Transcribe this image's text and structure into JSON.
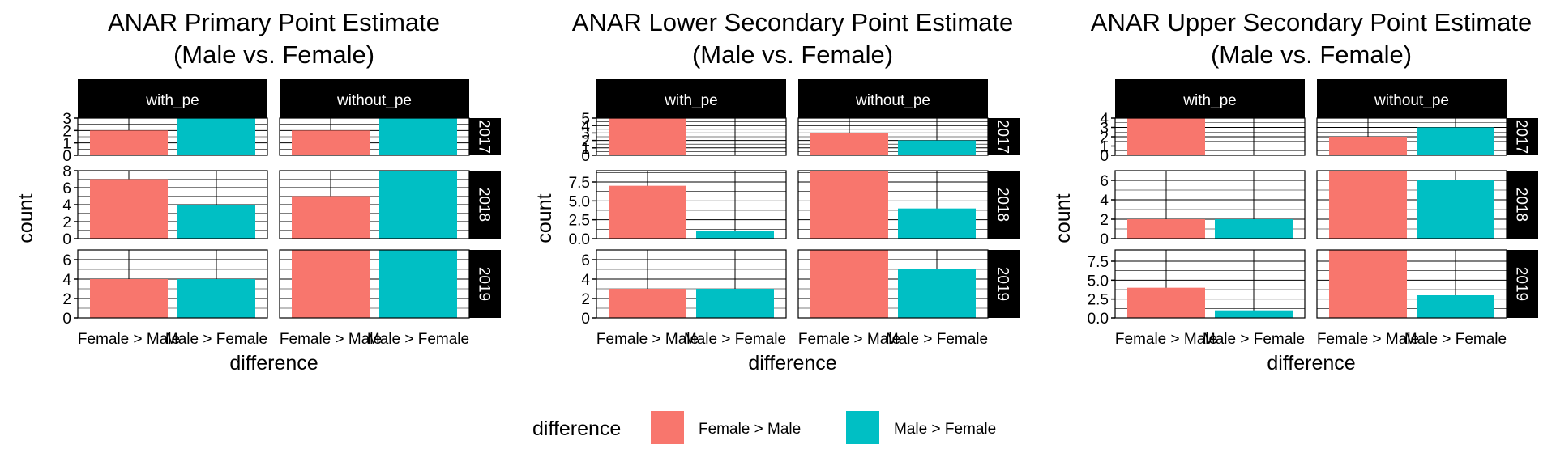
{
  "legend": {
    "title": "difference",
    "items": [
      {
        "label": "Female >  Male",
        "color": "#F8766D"
      },
      {
        "label": "Male > Female",
        "color": "#00BFC4"
      }
    ]
  },
  "chart_data": [
    {
      "type": "bar",
      "title": "ANAR Primary Point Estimate\n(Male vs. Female)",
      "xlabel": "difference",
      "ylabel": "count",
      "categories": [
        "Female >  Male",
        "Male > Female"
      ],
      "facet_cols": [
        "with_pe",
        "without_pe"
      ],
      "facet_rows": [
        "2017",
        "2018",
        "2019"
      ],
      "rows": [
        {
          "year": "2017",
          "ylim": [
            0,
            3
          ],
          "ticks": [
            "0",
            "1",
            "2",
            "3"
          ],
          "tickvals": [
            0,
            1,
            2,
            3
          ],
          "values": {
            "with_pe": [
              2,
              3
            ],
            "without_pe": [
              2,
              3
            ]
          }
        },
        {
          "year": "2018",
          "ylim": [
            0,
            8
          ],
          "ticks": [
            "0",
            "2",
            "4",
            "6",
            "8"
          ],
          "tickvals": [
            0,
            2,
            4,
            6,
            8
          ],
          "values": {
            "with_pe": [
              7,
              4
            ],
            "without_pe": [
              5,
              8
            ]
          }
        },
        {
          "year": "2019",
          "ylim": [
            0,
            7
          ],
          "ticks": [
            "0",
            "2",
            "4",
            "6"
          ],
          "tickvals": [
            0,
            2,
            4,
            6
          ],
          "values": {
            "with_pe": [
              4,
              4
            ],
            "without_pe": [
              7,
              7
            ]
          }
        }
      ]
    },
    {
      "type": "bar",
      "title": "ANAR Lower Secondary Point Estimate\n(Male vs. Female)",
      "xlabel": "difference",
      "ylabel": "count",
      "categories": [
        "Female >  Male",
        "Male > Female"
      ],
      "facet_cols": [
        "with_pe",
        "without_pe"
      ],
      "facet_rows": [
        "2017",
        "2018",
        "2019"
      ],
      "rows": [
        {
          "year": "2017",
          "ylim": [
            0,
            5
          ],
          "ticks": [
            "0",
            "1",
            "2",
            "3",
            "4",
            "5"
          ],
          "tickvals": [
            0,
            1,
            2,
            3,
            4,
            5
          ],
          "values": {
            "with_pe": [
              5,
              0
            ],
            "without_pe": [
              3,
              2
            ]
          }
        },
        {
          "year": "2018",
          "ylim": [
            0,
            9
          ],
          "ticks": [
            "0.0",
            "2.5",
            "5.0",
            "7.5"
          ],
          "tickvals": [
            0,
            2.5,
            5,
            7.5
          ],
          "values": {
            "with_pe": [
              7,
              1
            ],
            "without_pe": [
              9,
              4
            ]
          }
        },
        {
          "year": "2019",
          "ylim": [
            0,
            7
          ],
          "ticks": [
            "0",
            "2",
            "4",
            "6"
          ],
          "tickvals": [
            0,
            2,
            4,
            6
          ],
          "values": {
            "with_pe": [
              3,
              3
            ],
            "without_pe": [
              7,
              5
            ]
          }
        }
      ]
    },
    {
      "type": "bar",
      "title": "ANAR Upper Secondary Point Estimate\n(Male vs. Female)",
      "xlabel": "difference",
      "ylabel": "count",
      "categories": [
        "Female >  Male",
        "Male > Female"
      ],
      "facet_cols": [
        "with_pe",
        "without_pe"
      ],
      "facet_rows": [
        "2017",
        "2018",
        "2019"
      ],
      "rows": [
        {
          "year": "2017",
          "ylim": [
            0,
            4
          ],
          "ticks": [
            "0",
            "1",
            "2",
            "3",
            "4"
          ],
          "tickvals": [
            0,
            1,
            2,
            3,
            4
          ],
          "values": {
            "with_pe": [
              4,
              0
            ],
            "without_pe": [
              2,
              3
            ]
          }
        },
        {
          "year": "2018",
          "ylim": [
            0,
            7
          ],
          "ticks": [
            "0",
            "2",
            "4",
            "6"
          ],
          "tickvals": [
            0,
            2,
            4,
            6
          ],
          "values": {
            "with_pe": [
              2,
              2
            ],
            "without_pe": [
              7,
              6
            ]
          }
        },
        {
          "year": "2019",
          "ylim": [
            0,
            9
          ],
          "ticks": [
            "0.0",
            "2.5",
            "5.0",
            "7.5"
          ],
          "tickvals": [
            0,
            2.5,
            5,
            7.5
          ],
          "values": {
            "with_pe": [
              4,
              1
            ],
            "without_pe": [
              9,
              3
            ]
          }
        }
      ]
    }
  ]
}
